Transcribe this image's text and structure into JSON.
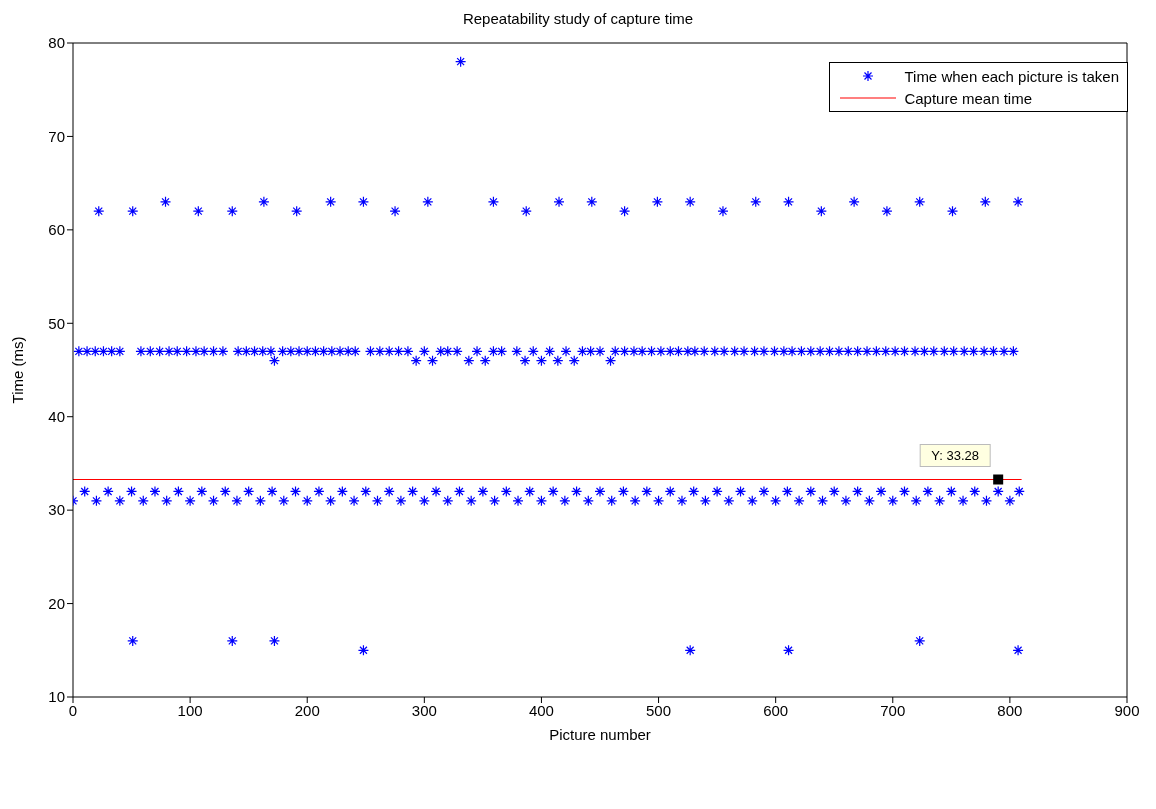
{
  "chart_data": {
    "type": "scatter",
    "title": "Repeatability study of capture time",
    "xlabel": "Picture number",
    "ylabel": "Time (ms)",
    "xlim": [
      0,
      900
    ],
    "xticks": [
      0,
      100,
      200,
      300,
      400,
      500,
      600,
      700,
      800,
      900
    ],
    "ylim": [
      10,
      80
    ],
    "yticks": [
      10,
      20,
      30,
      40,
      50,
      60,
      70,
      80
    ],
    "legend": "top right",
    "marker": "cross",
    "annotations": [
      {
        "text": "Y: 33.28",
        "x": 790,
        "y": 33.28
      }
    ],
    "series": [
      {
        "name": "Time when each picture is taken",
        "color": "#0000ff",
        "x": [
          0,
          10,
          20,
          30,
          40,
          50,
          60,
          70,
          80,
          90,
          100,
          110,
          120,
          130,
          140,
          150,
          160,
          170,
          180,
          190,
          200,
          210,
          220,
          230,
          240,
          250,
          260,
          270,
          280,
          290,
          300,
          310,
          320,
          330,
          340,
          350,
          360,
          370,
          380,
          390,
          400,
          410,
          420,
          430,
          440,
          450,
          460,
          470,
          480,
          490,
          500,
          510,
          520,
          530,
          540,
          550,
          560,
          570,
          580,
          590,
          600,
          610,
          620,
          630,
          640,
          650,
          660,
          670,
          680,
          690,
          700,
          710,
          720,
          730,
          740,
          750,
          760,
          770,
          780,
          790,
          800,
          808,
          5,
          12,
          19,
          26,
          33,
          40,
          58,
          66,
          74,
          82,
          89,
          97,
          105,
          112,
          120,
          128,
          141,
          148,
          155,
          162,
          169,
          172,
          179,
          186,
          193,
          200,
          207,
          214,
          221,
          228,
          235,
          241,
          254,
          262,
          270,
          278,
          286,
          293,
          300,
          307,
          314,
          320,
          328,
          338,
          345,
          352,
          359,
          366,
          379,
          386,
          393,
          400,
          407,
          414,
          421,
          428,
          435,
          442,
          450,
          459,
          463,
          471,
          479,
          486,
          494,
          502,
          510,
          517,
          525,
          531,
          539,
          548,
          556,
          565,
          573,
          582,
          590,
          599,
          607,
          614,
          622,
          630,
          638,
          646,
          654,
          662,
          670,
          678,
          686,
          694,
          702,
          710,
          719,
          727,
          735,
          744,
          752,
          761,
          769,
          778,
          786,
          795,
          803,
          22,
          51,
          79,
          107,
          136,
          163,
          191,
          220,
          248,
          275,
          303,
          331,
          359,
          387,
          415,
          443,
          471,
          499,
          527,
          555,
          583,
          611,
          639,
          667,
          695,
          723,
          751,
          779,
          807,
          51,
          136,
          172,
          248,
          527,
          611,
          723,
          807
        ],
        "values": [
          31,
          32,
          31,
          32,
          31,
          32,
          31,
          32,
          31,
          32,
          31,
          32,
          31,
          32,
          31,
          32,
          31,
          32,
          31,
          32,
          31,
          32,
          31,
          32,
          31,
          32,
          31,
          32,
          31,
          32,
          31,
          32,
          31,
          32,
          31,
          32,
          31,
          32,
          31,
          32,
          31,
          32,
          31,
          32,
          31,
          32,
          31,
          32,
          31,
          32,
          31,
          32,
          31,
          32,
          31,
          32,
          31,
          32,
          31,
          32,
          31,
          32,
          31,
          32,
          31,
          32,
          31,
          32,
          31,
          32,
          31,
          32,
          31,
          32,
          31,
          32,
          31,
          32,
          31,
          32,
          31,
          32,
          47,
          47,
          47,
          47,
          47,
          47,
          47,
          47,
          47,
          47,
          47,
          47,
          47,
          47,
          47,
          47,
          47,
          47,
          47,
          47,
          47,
          46,
          47,
          47,
          47,
          47,
          47,
          47,
          47,
          47,
          47,
          47,
          47,
          47,
          47,
          47,
          47,
          46,
          47,
          46,
          47,
          47,
          47,
          46,
          47,
          46,
          47,
          47,
          47,
          46,
          47,
          46,
          47,
          46,
          47,
          46,
          47,
          47,
          47,
          46,
          47,
          47,
          47,
          47,
          47,
          47,
          47,
          47,
          47,
          47,
          47,
          47,
          47,
          47,
          47,
          47,
          47,
          47,
          47,
          47,
          47,
          47,
          47,
          47,
          47,
          47,
          47,
          47,
          47,
          47,
          47,
          47,
          47,
          47,
          47,
          47,
          47,
          47,
          47,
          47,
          47,
          47,
          47,
          62,
          62,
          63,
          62,
          62,
          63,
          62,
          63,
          63,
          62,
          63,
          78,
          63,
          62,
          63,
          63,
          62,
          63,
          63,
          62,
          63,
          63,
          62,
          63,
          62,
          63,
          62,
          63,
          63,
          16,
          16,
          16,
          15,
          15,
          15,
          16,
          15
        ]
      },
      {
        "name": "Capture mean time",
        "type": "line",
        "color": "#ff0000",
        "marker": "none",
        "line_style": "solid",
        "x": [
          0,
          810
        ],
        "values": [
          33.28,
          33.28
        ]
      }
    ]
  }
}
